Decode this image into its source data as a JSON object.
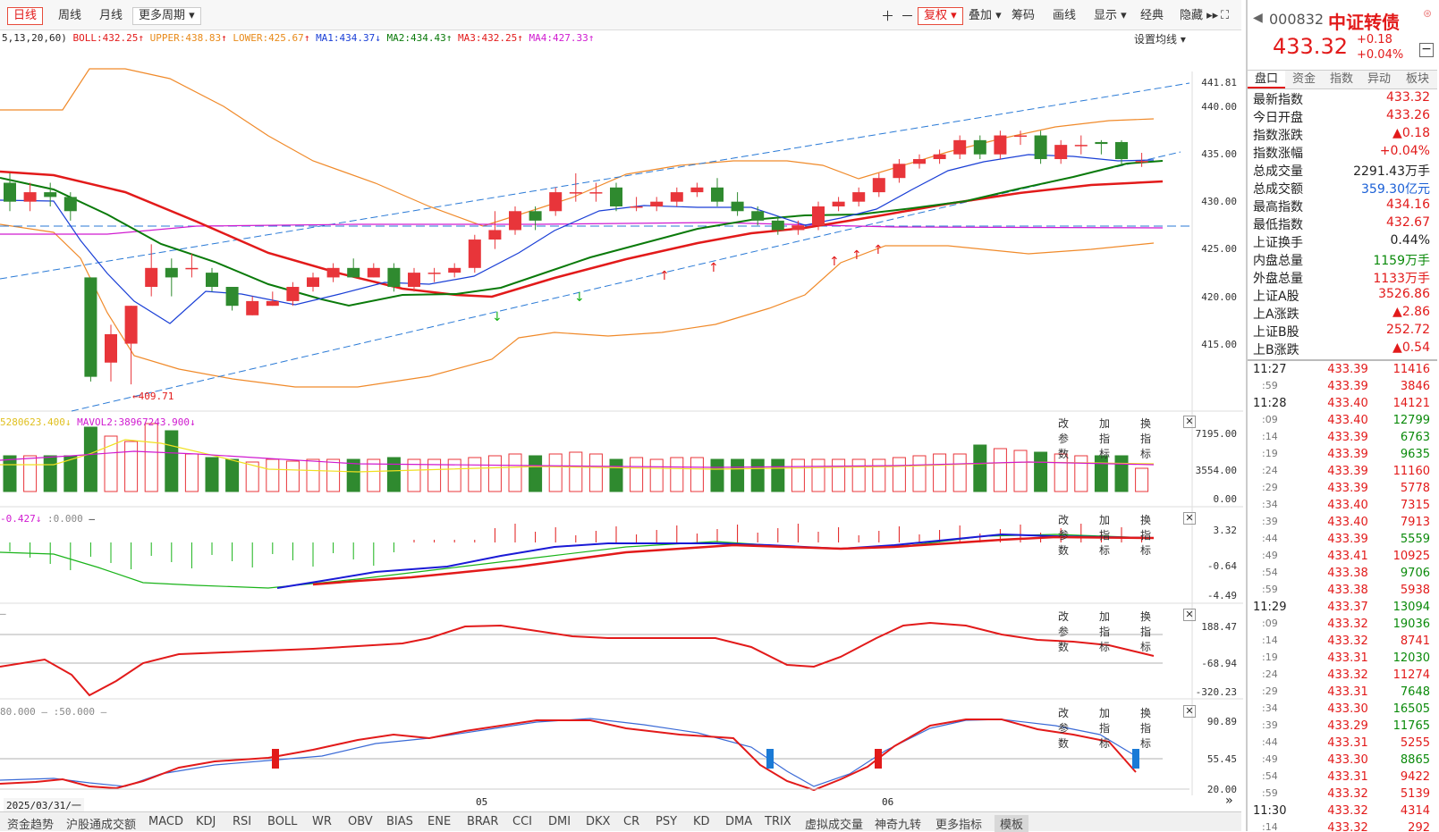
{
  "toolbar": {
    "periods": [
      "日线",
      "周线",
      "月线",
      "更多周期"
    ],
    "right_buttons": [
      "复权",
      "叠加",
      "筹码",
      "画线",
      "显示",
      "经典",
      "隐藏"
    ]
  },
  "main_legend": {
    "ma_params": "5,13,20,60)",
    "boll": "BOLL:432.25",
    "upper": "UPPER:438.83",
    "lower": "LOWER:425.67",
    "ma1": "MA1:434.37",
    "ma2": "MA2:434.43",
    "ma3": "MA3:432.25",
    "ma4": "MA4:427.33",
    "settings": "设置均线"
  },
  "price_axis": [
    "441.81",
    "440.00",
    "435.00",
    "430.00",
    "425.00",
    "420.00",
    "415.00"
  ],
  "low_label": "409.71",
  "vol_legend": {
    "a": "5280623.400",
    "b": "MAVOL2:38967243.900"
  },
  "vol_axis": [
    "7195.00",
    "3554.00",
    "0.00"
  ],
  "macd_legend": {
    "a": "-0.427",
    "b": ":0.000"
  },
  "macd_axis": [
    "3.32",
    "-0.64",
    "-4.49"
  ],
  "cci_axis": [
    "188.47",
    "-68.94",
    "-320.23"
  ],
  "kdj_legend": {
    "a": "80.000",
    "b": ":50.000"
  },
  "kdj_axis": [
    "90.89",
    "55.45",
    "20.00"
  ],
  "panel_buttons": [
    "改参数",
    "加指标",
    "换指标"
  ],
  "date_labels": {
    "cursor": "2025/03/31/一",
    "m05": "05",
    "m06": "06"
  },
  "bottom_tabs": [
    "资金趋势",
    "沪股通成交额",
    "MACD",
    "KDJ",
    "RSI",
    "BOLL",
    "WR",
    "OBV",
    "BIAS",
    "ENE",
    "BRAR",
    "CCI",
    "DMI",
    "DKX",
    "CR",
    "PSY",
    "KD",
    "DMA",
    "TRIX",
    "虚拟成交量",
    "神奇九转",
    "更多指标",
    "模板"
  ],
  "quote": {
    "code": "000832",
    "name": "中证转债",
    "price": "433.32",
    "change": "+0.18",
    "pct": "+0.04%",
    "tabs": [
      "盘口",
      "资金",
      "指数",
      "异动",
      "板块"
    ],
    "rows": [
      {
        "label": "最新指数",
        "value": "433.32",
        "color": "red"
      },
      {
        "label": "今日开盘",
        "value": "433.26",
        "color": "red"
      },
      {
        "label": "指数涨跌",
        "value": "▲0.18",
        "color": "red"
      },
      {
        "label": "指数涨幅",
        "value": "+0.04%",
        "color": "red"
      },
      {
        "label": "总成交量",
        "value": "2291.43万手",
        "color": "black"
      },
      {
        "label": "总成交额",
        "value": "359.30亿元",
        "color": "blue"
      },
      {
        "label": "最高指数",
        "value": "434.16",
        "color": "red"
      },
      {
        "label": "最低指数",
        "value": "432.67",
        "color": "red"
      },
      {
        "label": "上证换手",
        "value": "0.44%",
        "color": "black"
      },
      {
        "label": "内盘总量",
        "value": "1159万手",
        "color": "green"
      },
      {
        "label": "外盘总量",
        "value": "1133万手",
        "color": "red"
      },
      {
        "label": "上证A股",
        "value": "3526.86",
        "color": "red"
      },
      {
        "label": "上A涨跌",
        "value": "▲2.86",
        "color": "red"
      },
      {
        "label": "上证B股",
        "value": "252.72",
        "color": "red"
      },
      {
        "label": "上B涨跌",
        "value": "▲0.54",
        "color": "red"
      }
    ],
    "ticks": [
      {
        "t": "11:27",
        "p": "433.39",
        "q": "11416",
        "c": "red"
      },
      {
        "t": ":59",
        "p": "433.39",
        "q": "3846",
        "c": "red"
      },
      {
        "t": "11:28",
        "p": "433.40",
        "q": "14121",
        "c": "red"
      },
      {
        "t": ":09",
        "p": "433.40",
        "q": "12799",
        "c": "green"
      },
      {
        "t": ":14",
        "p": "433.39",
        "q": "6763",
        "c": "green"
      },
      {
        "t": ":19",
        "p": "433.39",
        "q": "9635",
        "c": "green"
      },
      {
        "t": ":24",
        "p": "433.39",
        "q": "11160",
        "c": "red"
      },
      {
        "t": ":29",
        "p": "433.39",
        "q": "5778",
        "c": "red"
      },
      {
        "t": ":34",
        "p": "433.40",
        "q": "7315",
        "c": "red"
      },
      {
        "t": ":39",
        "p": "433.40",
        "q": "7913",
        "c": "red"
      },
      {
        "t": ":44",
        "p": "433.39",
        "q": "5559",
        "c": "green"
      },
      {
        "t": ":49",
        "p": "433.41",
        "q": "10925",
        "c": "red"
      },
      {
        "t": ":54",
        "p": "433.38",
        "q": "9706",
        "c": "green"
      },
      {
        "t": ":59",
        "p": "433.38",
        "q": "5938",
        "c": "red"
      },
      {
        "t": "11:29",
        "p": "433.37",
        "q": "13094",
        "c": "green"
      },
      {
        "t": ":09",
        "p": "433.32",
        "q": "19036",
        "c": "green"
      },
      {
        "t": ":14",
        "p": "433.32",
        "q": "8741",
        "c": "red"
      },
      {
        "t": ":19",
        "p": "433.31",
        "q": "12030",
        "c": "green"
      },
      {
        "t": ":24",
        "p": "433.32",
        "q": "11274",
        "c": "red"
      },
      {
        "t": ":29",
        "p": "433.31",
        "q": "7648",
        "c": "green"
      },
      {
        "t": ":34",
        "p": "433.30",
        "q": "16505",
        "c": "green"
      },
      {
        "t": ":39",
        "p": "433.29",
        "q": "11765",
        "c": "green"
      },
      {
        "t": ":44",
        "p": "433.31",
        "q": "5255",
        "c": "red"
      },
      {
        "t": ":49",
        "p": "433.30",
        "q": "8865",
        "c": "green"
      },
      {
        "t": ":54",
        "p": "433.31",
        "q": "9422",
        "c": "red"
      },
      {
        "t": ":59",
        "p": "433.32",
        "q": "5139",
        "c": "red"
      },
      {
        "t": "11:30",
        "p": "433.32",
        "q": "4314",
        "c": "red"
      },
      {
        "t": ":14",
        "p": "433.32",
        "q": "292",
        "c": "red"
      }
    ]
  },
  "chart_data": {
    "type": "candlestick",
    "candles": [
      {
        "o": 431,
        "c": 429,
        "h": 432,
        "l": 428
      },
      {
        "o": 429,
        "c": 430,
        "h": 431,
        "l": 428
      },
      {
        "o": 430,
        "c": 429.5,
        "h": 431,
        "l": 428.5
      },
      {
        "o": 429.5,
        "c": 428,
        "h": 430,
        "l": 427
      },
      {
        "o": 421,
        "c": 410.5,
        "h": 421,
        "l": 410
      },
      {
        "o": 412,
        "c": 415,
        "h": 416,
        "l": 410
      },
      {
        "o": 414,
        "c": 418,
        "h": 418,
        "l": 409.7
      },
      {
        "o": 420,
        "c": 422,
        "h": 424.5,
        "l": 419
      },
      {
        "o": 422,
        "c": 421,
        "h": 423,
        "l": 419
      },
      {
        "o": 422,
        "c": 422,
        "h": 423.5,
        "l": 421
      },
      {
        "o": 421.5,
        "c": 420,
        "h": 422,
        "l": 419.5
      },
      {
        "o": 420,
        "c": 418,
        "h": 420,
        "l": 417.5
      },
      {
        "o": 417,
        "c": 418.5,
        "h": 419,
        "l": 417
      },
      {
        "o": 418,
        "c": 418.5,
        "h": 419.5,
        "l": 418
      },
      {
        "o": 418.5,
        "c": 420,
        "h": 420.5,
        "l": 418
      },
      {
        "o": 420,
        "c": 421,
        "h": 421.5,
        "l": 419.5
      },
      {
        "o": 421,
        "c": 422,
        "h": 422.5,
        "l": 420.5
      },
      {
        "o": 422,
        "c": 421,
        "h": 423,
        "l": 421
      },
      {
        "o": 421,
        "c": 422,
        "h": 422.5,
        "l": 421
      },
      {
        "o": 422,
        "c": 420,
        "h": 422.5,
        "l": 419.5
      },
      {
        "o": 420,
        "c": 421.5,
        "h": 422,
        "l": 419.5
      },
      {
        "o": 421.5,
        "c": 421.5,
        "h": 422,
        "l": 420.5
      },
      {
        "o": 421.5,
        "c": 422,
        "h": 422.5,
        "l": 421
      },
      {
        "o": 422,
        "c": 425,
        "h": 425.5,
        "l": 421.5
      },
      {
        "o": 425,
        "c": 426,
        "h": 428,
        "l": 424
      },
      {
        "o": 426,
        "c": 428,
        "h": 428.5,
        "l": 425.5
      },
      {
        "o": 428,
        "c": 427,
        "h": 428.5,
        "l": 426
      },
      {
        "o": 428,
        "c": 430,
        "h": 430.5,
        "l": 427.5
      },
      {
        "o": 430,
        "c": 430,
        "h": 432,
        "l": 429
      },
      {
        "o": 430,
        "c": 430,
        "h": 431,
        "l": 429
      },
      {
        "o": 430.5,
        "c": 428.5,
        "h": 431,
        "l": 428
      },
      {
        "o": 428.5,
        "c": 428.5,
        "h": 429.5,
        "l": 428
      },
      {
        "o": 428.5,
        "c": 429,
        "h": 429.5,
        "l": 428
      },
      {
        "o": 429,
        "c": 430,
        "h": 430.5,
        "l": 428.5
      },
      {
        "o": 430,
        "c": 430.5,
        "h": 431,
        "l": 429.5
      },
      {
        "o": 430.5,
        "c": 429,
        "h": 431.5,
        "l": 428.5
      },
      {
        "o": 429,
        "c": 428,
        "h": 430,
        "l": 427.5
      },
      {
        "o": 428,
        "c": 427,
        "h": 428.5,
        "l": 426.5
      },
      {
        "o": 427,
        "c": 426,
        "h": 427.5,
        "l": 425.5
      },
      {
        "o": 426,
        "c": 426.5,
        "h": 427,
        "l": 425.5
      },
      {
        "o": 426.5,
        "c": 428.5,
        "h": 429,
        "l": 426
      },
      {
        "o": 428.5,
        "c": 429,
        "h": 429.5,
        "l": 428
      },
      {
        "o": 429,
        "c": 430,
        "h": 430.5,
        "l": 428.5
      },
      {
        "o": 430,
        "c": 431.5,
        "h": 432,
        "l": 429.5
      },
      {
        "o": 431.5,
        "c": 433,
        "h": 433.5,
        "l": 431
      },
      {
        "o": 433,
        "c": 433.5,
        "h": 434,
        "l": 432.5
      },
      {
        "o": 433.5,
        "c": 434,
        "h": 434.5,
        "l": 433
      },
      {
        "o": 434,
        "c": 435.5,
        "h": 436,
        "l": 433.5
      },
      {
        "o": 435.5,
        "c": 434,
        "h": 436,
        "l": 433.5
      },
      {
        "o": 434,
        "c": 436,
        "h": 436.5,
        "l": 433.5
      },
      {
        "o": 436,
        "c": 436,
        "h": 436.5,
        "l": 435
      },
      {
        "o": 436,
        "c": 433.5,
        "h": 436.5,
        "l": 433
      },
      {
        "o": 433.5,
        "c": 435,
        "h": 435.5,
        "l": 433
      },
      {
        "o": 435,
        "c": 435,
        "h": 436,
        "l": 434
      },
      {
        "o": 435.3,
        "c": 435.1,
        "h": 435.5,
        "l": 434
      },
      {
        "o": 435.3,
        "c": 433.5,
        "h": 435.5,
        "l": 433
      },
      {
        "o": 433.3,
        "c": 433.3,
        "h": 434.16,
        "l": 432.67
      }
    ],
    "ylim": [
      409.71,
      441.81
    ]
  }
}
